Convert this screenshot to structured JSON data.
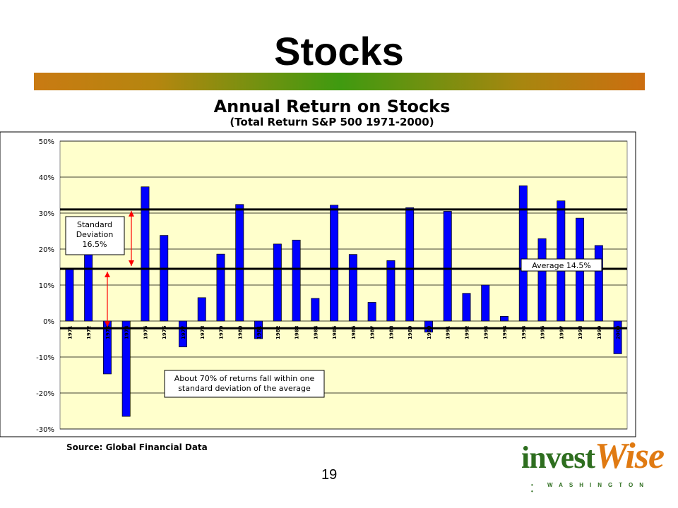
{
  "slide": {
    "title": "Stocks",
    "page_number": "19",
    "source": "Source:  Global Financial Data",
    "logo": {
      "part1": "invest",
      "part2": "Wise",
      "tagline": "• WASHINGTON •"
    }
  },
  "colors": {
    "bar": "#0000ff",
    "plot_background": "#ffffcc",
    "arrow": "#ff0000",
    "title_bar_start": "#c97a12",
    "title_bar_mid": "#3f9a10"
  },
  "chart_data": {
    "type": "bar",
    "title": "Annual Return on Stocks",
    "subtitle": "(Total Return S&P 500 1971-2000)",
    "categories": [
      "1971",
      "1972",
      "1973",
      "1974",
      "1975",
      "1976",
      "1977",
      "1978",
      "1979",
      "1980",
      "1981",
      "1982",
      "1983",
      "1984",
      "1985",
      "1986",
      "1987",
      "1988",
      "1989",
      "1990",
      "1991",
      "1992",
      "1993",
      "1994",
      "1995",
      "1996",
      "1997",
      "1998",
      "1999",
      "2000"
    ],
    "values": [
      14.5,
      18.8,
      -14.7,
      -26.5,
      37.3,
      23.8,
      -7.2,
      6.5,
      18.6,
      32.4,
      -4.9,
      21.4,
      22.5,
      6.3,
      32.2,
      18.5,
      5.2,
      16.8,
      31.5,
      -3.1,
      30.5,
      7.7,
      10.0,
      1.3,
      37.6,
      22.9,
      33.4,
      28.6,
      21.0,
      -9.1
    ],
    "ylim": [
      -30,
      50
    ],
    "yticks": [
      "-30%",
      "-20%",
      "-10%",
      "0%",
      "10%",
      "20%",
      "30%",
      "40%",
      "50%"
    ],
    "grid": true,
    "reference_lines": [
      {
        "label": "Average 14.5%",
        "value": 14.5
      },
      {
        "label": "",
        "value": 31
      },
      {
        "label": "",
        "value": -2
      }
    ],
    "annotations": {
      "std_dev": [
        "Standard",
        "Deviation",
        "16.5%"
      ],
      "note": [
        "About 70% of returns fall within one",
        "standard deviation of the average"
      ],
      "average": "Average 14.5%"
    }
  }
}
